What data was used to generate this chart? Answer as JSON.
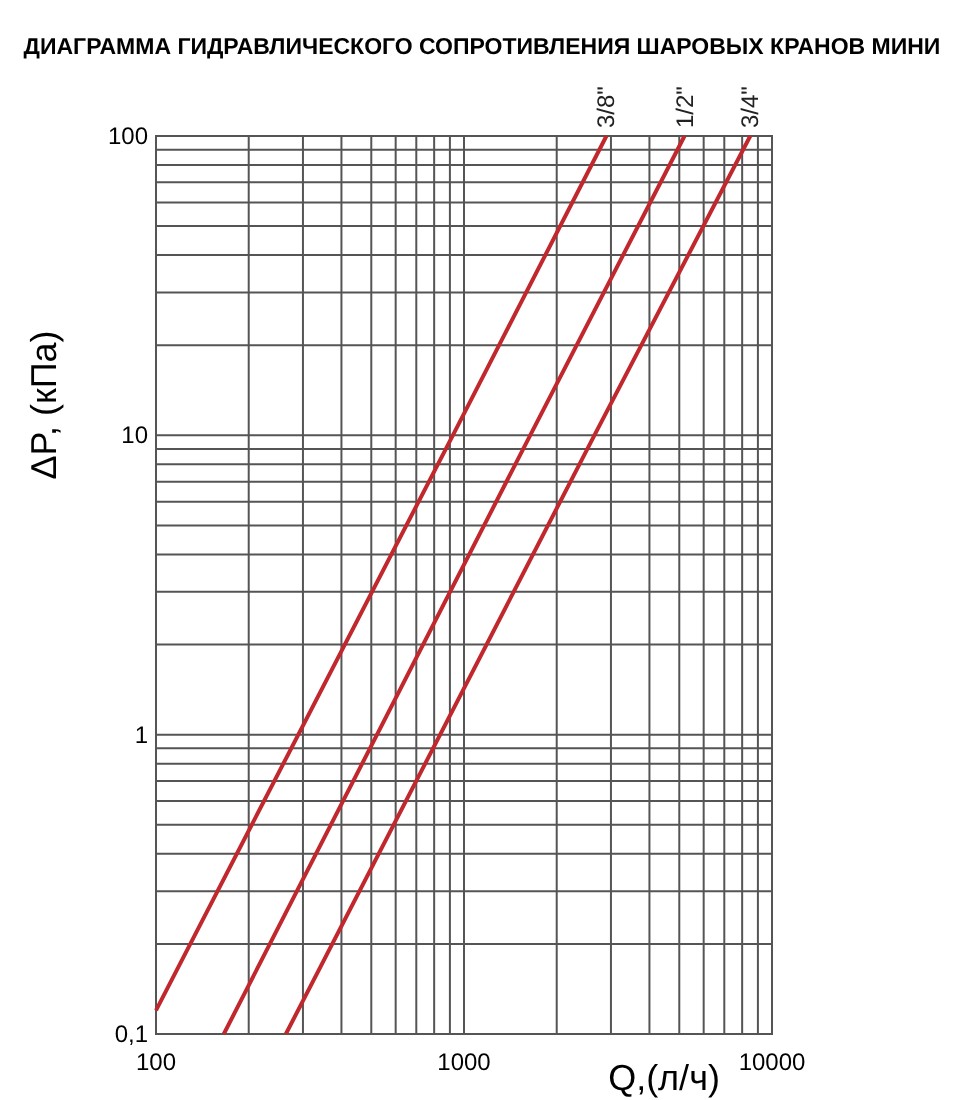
{
  "chart_data": {
    "type": "line",
    "title": "ДИАГРАММА ГИДРАВЛИЧЕСКОГО СОПРОТИВЛЕНИЯ ШАРОВЫХ КРАНОВ МИНИ",
    "xlabel": "Q,(л/ч)",
    "ylabel": "ΔP, (кПа)",
    "log": "xy",
    "grid": true,
    "marker": "none",
    "line_style": "solid",
    "xlim": [
      100,
      10000
    ],
    "ylim": [
      0.1,
      100
    ],
    "xticks": [
      100,
      {
        "value": 200,
        "label": null
      },
      {
        "value": 300,
        "label": null
      },
      {
        "value": 400,
        "label": null
      },
      {
        "value": 500,
        "label": null
      },
      {
        "value": 600,
        "label": null
      },
      {
        "value": 700,
        "label": null
      },
      {
        "value": 800,
        "label": null
      },
      {
        "value": 900,
        "label": null
      },
      1000,
      {
        "value": 2000,
        "label": null
      },
      {
        "value": 3000,
        "label": null
      },
      {
        "value": 4000,
        "label": null
      },
      {
        "value": 5000,
        "label": null
      },
      {
        "value": 6000,
        "label": null
      },
      {
        "value": 7000,
        "label": null
      },
      {
        "value": 8000,
        "label": null
      },
      {
        "value": 9000,
        "label": null
      },
      10000
    ],
    "yticks": [
      {
        "value": 0.1,
        "label": "0,1"
      },
      {
        "value": 0.2,
        "label": null
      },
      {
        "value": 0.3,
        "label": null
      },
      {
        "value": 0.4,
        "label": null
      },
      {
        "value": 0.5,
        "label": null
      },
      {
        "value": 0.6,
        "label": null
      },
      {
        "value": 0.7,
        "label": null
      },
      {
        "value": 0.8,
        "label": null
      },
      {
        "value": 0.9,
        "label": null
      },
      1,
      {
        "value": 2,
        "label": null
      },
      {
        "value": 3,
        "label": null
      },
      {
        "value": 4,
        "label": null
      },
      {
        "value": 5,
        "label": null
      },
      {
        "value": 6,
        "label": null
      },
      {
        "value": 7,
        "label": null
      },
      {
        "value": 8,
        "label": null
      },
      {
        "value": 9,
        "label": null
      },
      10,
      {
        "value": 20,
        "label": null
      },
      {
        "value": 30,
        "label": null
      },
      {
        "value": 40,
        "label": null
      },
      {
        "value": 50,
        "label": null
      },
      {
        "value": 60,
        "label": null
      },
      {
        "value": 70,
        "label": null
      },
      {
        "value": 80,
        "label": null
      },
      {
        "value": 90,
        "label": null
      },
      100
    ],
    "series": [
      {
        "name": "3/8\"",
        "color": "#c0282d",
        "x": [
          100,
          920,
          2900
        ],
        "values": [
          0.12,
          10,
          100
        ]
      },
      {
        "name": "1/2\"",
        "color": "#c0282d",
        "x": [
          166,
          1640,
          5200
        ],
        "values": [
          0.1,
          10,
          100
        ]
      },
      {
        "name": "3/4\"",
        "color": "#c0282d",
        "x": [
          264,
          2650,
          8500
        ],
        "values": [
          0.1,
          10,
          100
        ]
      }
    ]
  }
}
